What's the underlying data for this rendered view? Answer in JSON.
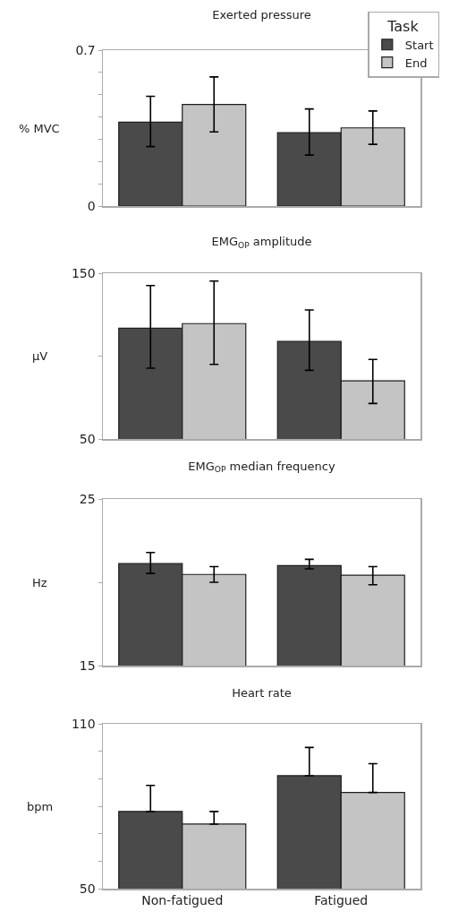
{
  "chart_data": [
    {
      "type": "bar",
      "title": "Exerted pressure",
      "ylabel": "% MVC",
      "legend_title": "Task",
      "legend": "top right",
      "tick_labels": "y",
      "categories": [
        null,
        null
      ],
      "ylim": [
        0,
        0.7
      ],
      "yticks": [
        0,
        {
          "value": 0.1,
          "label": null
        },
        {
          "value": 0.2,
          "label": null
        },
        {
          "value": 0.3,
          "label": null
        },
        {
          "value": 0.4,
          "label": null
        },
        {
          "value": 0.5,
          "label": null
        },
        {
          "value": 0.6,
          "label": null
        },
        0.7
      ],
      "grid": false,
      "series": [
        {
          "name": "Start",
          "color": "#4a4a4a",
          "values": [
            0.377,
            0.329
          ],
          "errors": [
            [
              0.267,
              0.493
            ],
            [
              0.229,
              0.436
            ]
          ]
        },
        {
          "name": "End",
          "color": "#c4c4c4",
          "values": [
            0.456,
            0.351
          ],
          "errors": [
            [
              0.333,
              0.58
            ],
            [
              0.277,
              0.427
            ]
          ]
        }
      ]
    },
    {
      "type": "bar",
      "title": "EMG$_{OP}$ amplitude",
      "ylabel": "µV",
      "tick_labels": "y",
      "categories": [
        null,
        null
      ],
      "ylim": [
        50,
        150
      ],
      "yticks": [
        50,
        {
          "value": 100,
          "label": null
        },
        150
      ],
      "grid": false,
      "series": [
        {
          "color": "#4a4a4a",
          "values": [
            116.8,
            108.8
          ],
          "errors": [
            [
              92.7,
              142.6
            ],
            [
              91.4,
              127.8
            ]
          ]
        },
        {
          "color": "#c4c4c4",
          "values": [
            119.6,
            85.1
          ],
          "errors": [
            [
              95,
              145.3
            ],
            [
              71.4,
              98
            ]
          ]
        }
      ]
    },
    {
      "type": "bar",
      "title": "EMG$_{OP}$ median frequency",
      "ylabel": "Hz",
      "tick_labels": "y",
      "categories": [
        null,
        null
      ],
      "ylim": [
        15,
        25
      ],
      "yticks": [
        15,
        {
          "value": 20,
          "label": null
        },
        25
      ],
      "grid": false,
      "series": [
        {
          "color": "#4a4a4a",
          "values": [
            21.13,
            21.0
          ],
          "errors": [
            [
              20.53,
              21.79
            ],
            [
              20.81,
              21.38
            ]
          ]
        },
        {
          "color": "#c4c4c4",
          "values": [
            20.47,
            20.42
          ],
          "errors": [
            [
              20.0,
              20.94
            ],
            [
              19.85,
              20.94
            ]
          ]
        }
      ]
    },
    {
      "type": "bar",
      "title": "Heart rate",
      "ylabel": "bpm",
      "categories": [
        "Non-fatigued",
        "Fatigued"
      ],
      "ylim": [
        50,
        110
      ],
      "yticks": [
        50,
        {
          "value": 60,
          "label": null
        },
        {
          "value": 70,
          "label": null
        },
        {
          "value": 80,
          "label": null
        },
        {
          "value": 90,
          "label": null
        },
        {
          "value": 100,
          "label": null
        },
        110
      ],
      "grid": false,
      "series": [
        {
          "color": "#4a4a4a",
          "values": [
            78.1,
            91.1
          ],
          "errors": [
            [
              78.1,
              87.6
            ],
            [
              91.1,
              101.4
            ]
          ]
        },
        {
          "color": "#c4c4c4",
          "values": [
            73.5,
            85.0
          ],
          "errors": [
            [
              73.5,
              78.1
            ],
            [
              85.0,
              95.5
            ]
          ]
        }
      ]
    }
  ]
}
